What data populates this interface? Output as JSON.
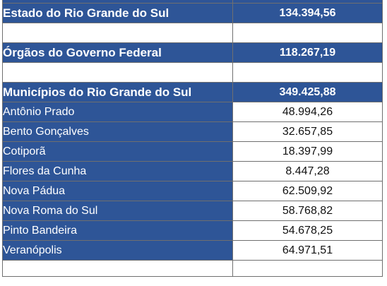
{
  "sections": [
    {
      "label": "Estado do Rio Grande do Sul",
      "value": "134.394,56"
    },
    {
      "label": "Órgãos do Governo Federal",
      "value": "118.267,19"
    },
    {
      "label": "Municípios do Rio Grande do Sul",
      "value": "349.425,88"
    }
  ],
  "municipalities": [
    {
      "name": "Antônio Prado",
      "value": "48.994,26"
    },
    {
      "name": "Bento Gonçalves",
      "value": "32.657,85"
    },
    {
      "name": "Cotiporã",
      "value": "18.397,99"
    },
    {
      "name": "Flores da Cunha",
      "value": "8.447,28"
    },
    {
      "name": "Nova Pádua",
      "value": "62.509,92"
    },
    {
      "name": "Nova Roma do Sul",
      "value": "58.768,82"
    },
    {
      "name": "Pinto Bandeira",
      "value": "54.678,25"
    },
    {
      "name": "Veranópolis",
      "value": "64.971,51"
    }
  ]
}
